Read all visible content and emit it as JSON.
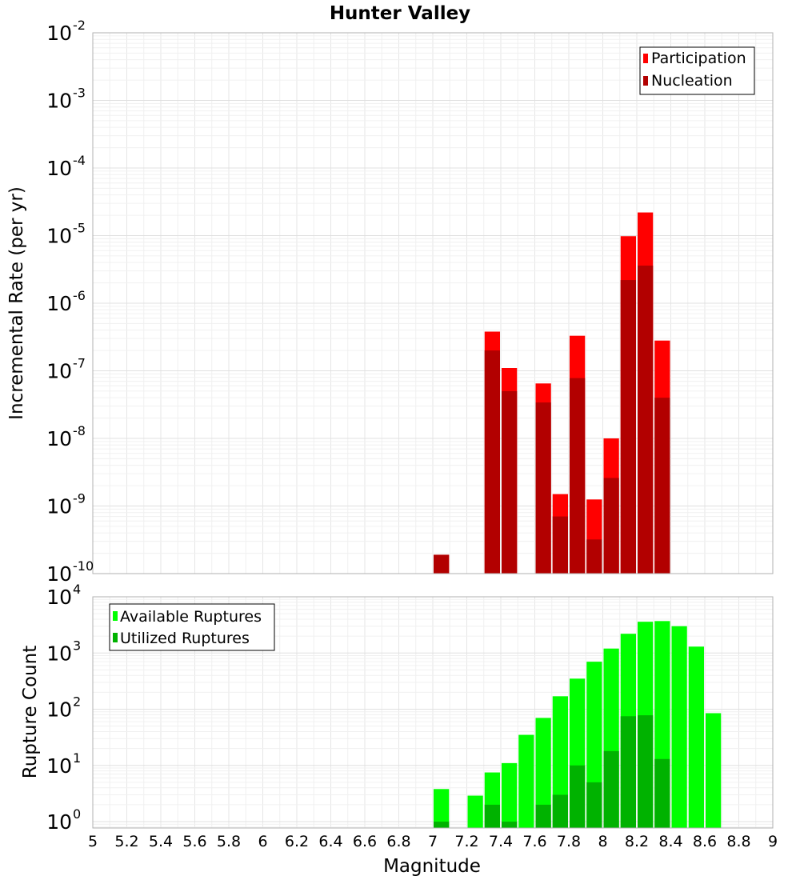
{
  "chart_data": [
    {
      "type": "bar",
      "title": "Hunter Valley",
      "xlabel": "",
      "ylabel": "Incremental Rate (per yr)",
      "yscale": "log",
      "xlim": [
        5,
        9
      ],
      "ylim": [
        1e-10,
        0.01
      ],
      "grid": true,
      "legend_position": "top-right",
      "ytick_labels": [
        "10^-10",
        "10^-9",
        "10^-8",
        "10^-7",
        "10^-6",
        "10^-5",
        "10^-4",
        "10^-3",
        "10^-2"
      ],
      "series": [
        {
          "name": "Participation",
          "color": "#ff0000",
          "points": [
            {
              "x": 7.05,
              "y": 1.9e-10
            },
            {
              "x": 7.35,
              "y": 3.8e-07
            },
            {
              "x": 7.45,
              "y": 1.1e-07
            },
            {
              "x": 7.65,
              "y": 6.5e-08
            },
            {
              "x": 7.75,
              "y": 1.5e-09
            },
            {
              "x": 7.85,
              "y": 3.3e-07
            },
            {
              "x": 7.95,
              "y": 1.25e-09
            },
            {
              "x": 8.05,
              "y": 1e-08
            },
            {
              "x": 8.15,
              "y": 9.8e-06
            },
            {
              "x": 8.25,
              "y": 2.2e-05
            },
            {
              "x": 8.35,
              "y": 2.8e-07
            }
          ]
        },
        {
          "name": "Nucleation",
          "color": "#b20000",
          "points": [
            {
              "x": 7.05,
              "y": 1.9e-10
            },
            {
              "x": 7.35,
              "y": 2e-07
            },
            {
              "x": 7.45,
              "y": 5e-08
            },
            {
              "x": 7.65,
              "y": 3.4e-08
            },
            {
              "x": 7.75,
              "y": 7e-10
            },
            {
              "x": 7.85,
              "y": 7.8e-08
            },
            {
              "x": 7.95,
              "y": 3.2e-10
            },
            {
              "x": 8.05,
              "y": 2.6e-09
            },
            {
              "x": 8.15,
              "y": 2.2e-06
            },
            {
              "x": 8.25,
              "y": 3.6e-06
            },
            {
              "x": 8.35,
              "y": 4e-08
            }
          ]
        }
      ]
    },
    {
      "type": "bar",
      "title": "",
      "xlabel": "Magnitude",
      "ylabel": "Rupture Count",
      "yscale": "log",
      "xlim": [
        5,
        9
      ],
      "ylim": [
        0.77,
        10000
      ],
      "grid": true,
      "legend_position": "top-left",
      "xtick_labels": [
        "5",
        "5.2",
        "5.4",
        "5.6",
        "5.8",
        "6",
        "6.2",
        "6.4",
        "6.6",
        "6.8",
        "7",
        "7.2",
        "7.4",
        "7.6",
        "7.8",
        "8",
        "8.2",
        "8.4",
        "8.6",
        "8.8",
        "9"
      ],
      "ytick_labels": [
        "10^0",
        "10^1",
        "10^2",
        "10^3",
        "10^4"
      ],
      "series": [
        {
          "name": "Available Ruptures",
          "color": "#00ff00",
          "points": [
            {
              "x": 7.05,
              "y": 3.8
            },
            {
              "x": 7.25,
              "y": 2.9
            },
            {
              "x": 7.35,
              "y": 7.5
            },
            {
              "x": 7.45,
              "y": 11
            },
            {
              "x": 7.55,
              "y": 35
            },
            {
              "x": 7.65,
              "y": 70
            },
            {
              "x": 7.75,
              "y": 170
            },
            {
              "x": 7.85,
              "y": 350
            },
            {
              "x": 7.95,
              "y": 700
            },
            {
              "x": 8.05,
              "y": 1200
            },
            {
              "x": 8.15,
              "y": 2200
            },
            {
              "x": 8.25,
              "y": 3600
            },
            {
              "x": 8.35,
              "y": 3700
            },
            {
              "x": 8.45,
              "y": 3000
            },
            {
              "x": 8.55,
              "y": 1300
            },
            {
              "x": 8.65,
              "y": 85
            }
          ]
        },
        {
          "name": "Utilized Ruptures",
          "color": "#00b200",
          "points": [
            {
              "x": 7.05,
              "y": 1
            },
            {
              "x": 7.35,
              "y": 2
            },
            {
              "x": 7.45,
              "y": 1
            },
            {
              "x": 7.65,
              "y": 2
            },
            {
              "x": 7.75,
              "y": 3
            },
            {
              "x": 7.85,
              "y": 10
            },
            {
              "x": 7.95,
              "y": 5
            },
            {
              "x": 8.05,
              "y": 18
            },
            {
              "x": 8.15,
              "y": 75
            },
            {
              "x": 8.25,
              "y": 78
            },
            {
              "x": 8.35,
              "y": 13
            }
          ]
        }
      ]
    }
  ]
}
